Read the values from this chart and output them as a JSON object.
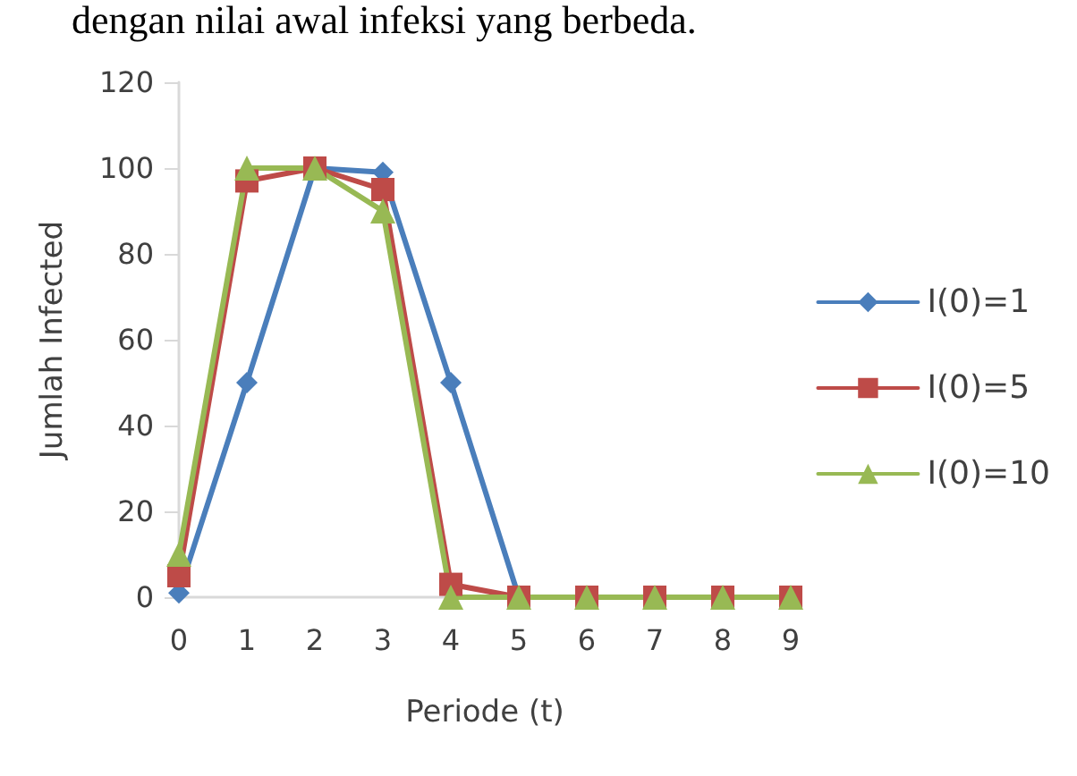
{
  "chart_data": {
    "type": "line",
    "annotations": [
      "dengan nilai awal infeksi yang berbeda."
    ],
    "xlabel": "Periode (t)",
    "ylabel": "Jumlah Infected",
    "categories": [
      "0",
      "1",
      "2",
      "3",
      "4",
      "5",
      "6",
      "7",
      "8",
      "9"
    ],
    "series": [
      {
        "name": "I(0)=1",
        "color": "#4a7ebb",
        "marker": "diamond",
        "values": [
          1,
          50,
          100,
          99,
          50,
          0,
          0,
          null,
          null,
          null
        ]
      },
      {
        "name": "I(0)=5",
        "color": "#be4b48",
        "marker": "square",
        "values": [
          5,
          97,
          100,
          95,
          3,
          0,
          0,
          0,
          0,
          0
        ]
      },
      {
        "name": "I(0)=10",
        "color": "#98b954",
        "marker": "triangle",
        "values": [
          10,
          100,
          100,
          90,
          0,
          0,
          0,
          0,
          0,
          0
        ]
      }
    ],
    "ylim": [
      0,
      120
    ],
    "yticks": [
      0,
      20,
      40,
      60,
      80,
      100,
      120
    ],
    "grid": false,
    "legend": "right"
  }
}
